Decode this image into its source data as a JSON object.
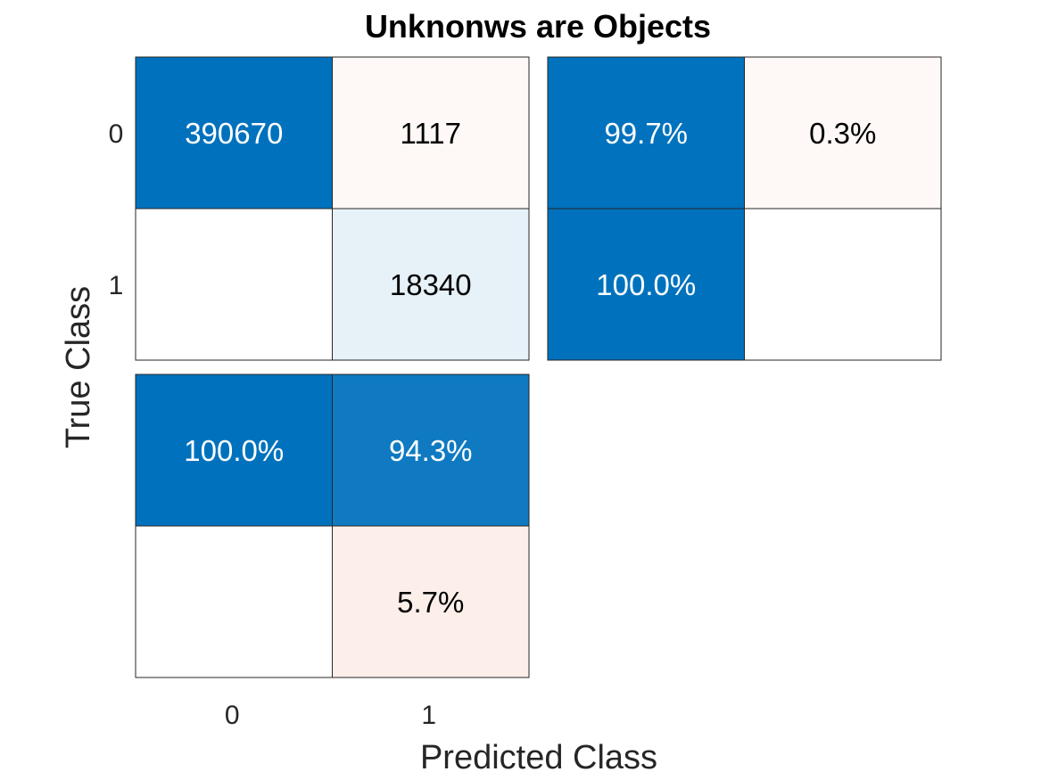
{
  "chart_data": {
    "type": "heatmap",
    "title": "Unknonws are Objects",
    "xlabel": "Predicted Class",
    "ylabel": "True Class",
    "class_labels": [
      "0",
      "1"
    ],
    "confusion_matrix": {
      "values": [
        [
          390670,
          1117
        ],
        [
          null,
          18340
        ]
      ],
      "labels": [
        [
          "390670",
          "1117"
        ],
        [
          "",
          "18340"
        ]
      ]
    },
    "row_summary": {
      "values": [
        [
          99.7,
          0.3
        ],
        [
          100.0,
          null
        ]
      ],
      "labels": [
        [
          "99.7%",
          "0.3%"
        ],
        [
          "100.0%",
          ""
        ]
      ]
    },
    "column_summary": {
      "values": [
        [
          100.0,
          94.3
        ],
        [
          null,
          5.7
        ]
      ],
      "labels": [
        [
          "100.0%",
          "94.3%"
        ],
        [
          "",
          "5.7%"
        ]
      ]
    },
    "colors": {
      "positive": "#0072BD",
      "negative": "#D95319",
      "grid": "#262626",
      "text_dark": "#000000",
      "text_light": "#ffffff"
    }
  }
}
